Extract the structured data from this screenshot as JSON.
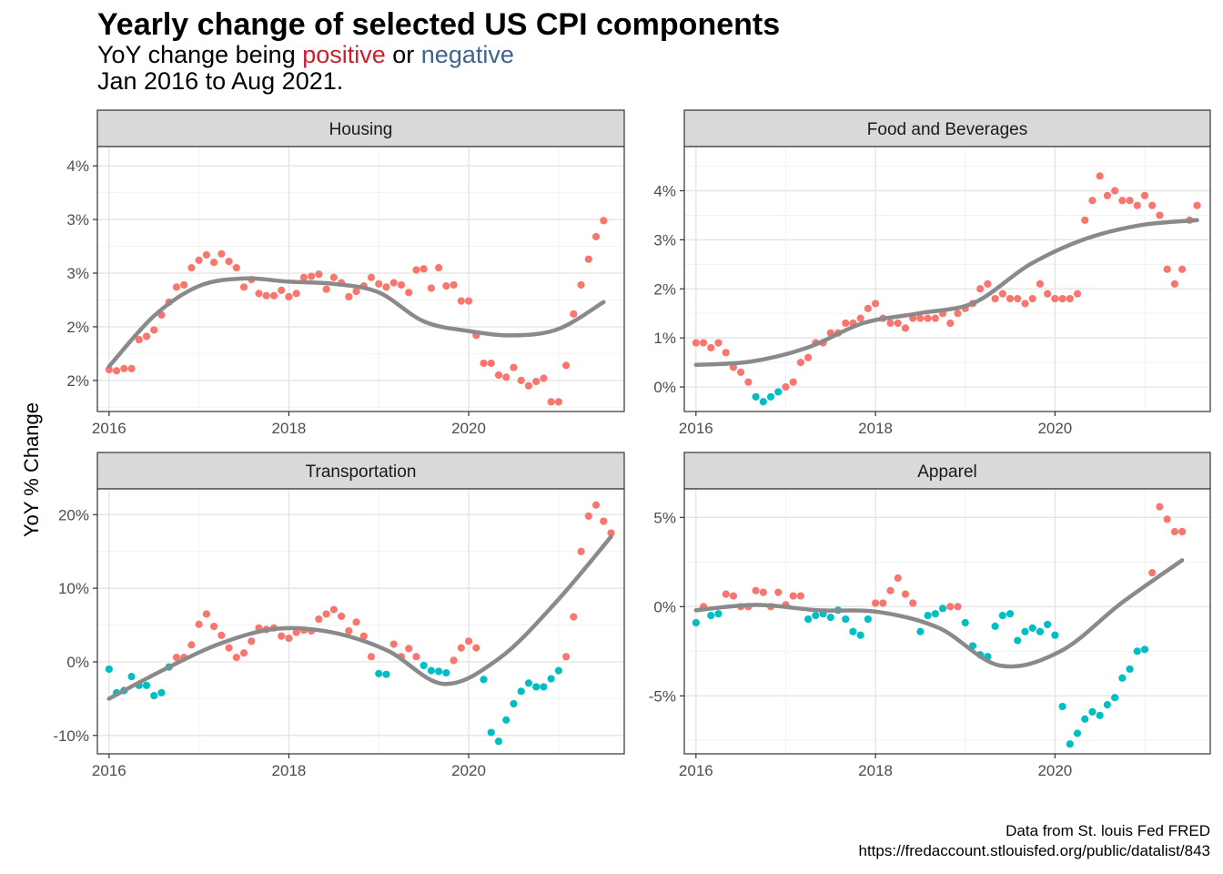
{
  "title": "Yearly change of selected US CPI components",
  "subtitle": {
    "prefix": "YoY change being ",
    "positive_word": "positive",
    "middle": " or  ",
    "negative_word": "negative",
    "line2": "Jan 2016 to Aug 2021."
  },
  "ylabel": "YoY % Change",
  "caption": {
    "line1": "Data from  St. louis Fed FRED",
    "line2": "https://fredaccount.stlouisfed.org/public/datalist/843"
  },
  "colors": {
    "positive": "#F8766D",
    "negative": "#00BFC4",
    "trend": "#8A8A8A",
    "strip": "#D9D9D9"
  },
  "chart_data": [
    {
      "type": "scatter",
      "facet": "Housing",
      "x_start": "2016-01",
      "x_step": "month",
      "x_ticks": [
        "2016",
        "2018",
        "2020"
      ],
      "y_ticks": [
        {
          "v": 1.5,
          "label": "2%"
        },
        {
          "v": 2.0,
          "label": "2%"
        },
        {
          "v": 2.5,
          "label": "3%"
        },
        {
          "v": 3.0,
          "label": "3%"
        },
        {
          "v": 3.5,
          "label": "4%"
        }
      ],
      "ylim": [
        1.21,
        3.68
      ],
      "values": [
        1.6,
        1.59,
        1.61,
        1.61,
        1.88,
        1.91,
        1.97,
        2.11,
        2.23,
        2.37,
        2.39,
        2.55,
        2.62,
        2.67,
        2.6,
        2.68,
        2.61,
        2.55,
        2.37,
        2.44,
        2.31,
        2.29,
        2.29,
        2.34,
        2.28,
        2.31,
        2.46,
        2.47,
        2.49,
        2.35,
        2.46,
        2.41,
        2.28,
        2.33,
        2.38,
        2.46,
        2.4,
        2.37,
        2.41,
        2.39,
        2.32,
        2.53,
        2.54,
        2.36,
        2.55,
        2.38,
        2.39,
        2.24,
        2.24,
        1.92,
        1.66,
        1.66,
        1.55,
        1.53,
        1.62,
        1.5,
        1.45,
        1.49,
        1.52,
        1.3,
        1.3,
        1.64,
        2.12,
        2.39,
        2.63,
        2.84,
        2.99
      ],
      "trend": [
        1.63,
        2.1,
        2.38,
        2.45,
        2.42,
        2.4,
        2.32,
        2.05,
        1.96,
        1.92,
        1.98,
        2.23
      ]
    },
    {
      "type": "scatter",
      "facet": "Food and Beverages",
      "x_start": "2016-01",
      "x_step": "month",
      "x_ticks": [
        "2016",
        "2018",
        "2020"
      ],
      "y_ticks": [
        {
          "v": 0,
          "label": "0%"
        },
        {
          "v": 1,
          "label": "1%"
        },
        {
          "v": 2,
          "label": "2%"
        },
        {
          "v": 3,
          "label": "3%"
        },
        {
          "v": 4,
          "label": "4%"
        }
      ],
      "ylim": [
        -0.5,
        4.9
      ],
      "values": [
        0.9,
        0.9,
        0.8,
        0.9,
        0.7,
        0.4,
        0.3,
        0.1,
        -0.2,
        -0.3,
        -0.2,
        -0.1,
        -0.0,
        0.1,
        0.5,
        0.6,
        0.9,
        0.9,
        1.1,
        1.1,
        1.3,
        1.3,
        1.4,
        1.6,
        1.7,
        1.4,
        1.3,
        1.3,
        1.2,
        1.4,
        1.4,
        1.4,
        1.4,
        1.5,
        1.3,
        1.5,
        1.6,
        1.7,
        2.0,
        2.1,
        1.8,
        1.9,
        1.8,
        1.8,
        1.7,
        1.8,
        2.1,
        1.9,
        1.8,
        1.8,
        1.8,
        1.9,
        3.4,
        3.8,
        4.3,
        3.9,
        4.0,
        3.8,
        3.8,
        3.7,
        3.9,
        3.7,
        3.5,
        2.4,
        2.1,
        2.4,
        3.4,
        3.7
      ],
      "trend": [
        0.45,
        0.52,
        0.8,
        1.3,
        1.5,
        1.72,
        2.5,
        3.02,
        3.3,
        3.4
      ]
    },
    {
      "type": "scatter",
      "facet": "Transportation",
      "x_start": "2016-01",
      "x_step": "month",
      "x_ticks": [
        "2016",
        "2018",
        "2020"
      ],
      "y_ticks": [
        {
          "v": -10,
          "label": "-10%"
        },
        {
          "v": 0,
          "label": "0%"
        },
        {
          "v": 10,
          "label": "10%"
        },
        {
          "v": 20,
          "label": "20%"
        }
      ],
      "ylim": [
        -12.5,
        23.5
      ],
      "values": [
        -1.0,
        -4.2,
        -3.9,
        -2.0,
        -3.2,
        -3.2,
        -4.6,
        -4.2,
        -0.7,
        0.6,
        0.6,
        2.3,
        5.1,
        6.5,
        4.8,
        3.6,
        1.9,
        0.6,
        1.2,
        2.8,
        4.6,
        4.4,
        4.6,
        3.5,
        3.2,
        4.0,
        4.3,
        4.2,
        5.8,
        6.5,
        7.1,
        6.2,
        4.2,
        5.4,
        3.5,
        0.7,
        -1.6,
        -1.7,
        2.4,
        0.7,
        1.8,
        0.7,
        -0.5,
        -1.2,
        -1.3,
        -1.5,
        0.2,
        1.9,
        2.8,
        1.9,
        -2.4,
        -9.6,
        -10.8,
        -7.9,
        -5.7,
        -4.0,
        -2.9,
        -3.4,
        -3.4,
        -2.3,
        -1.2,
        0.7,
        6.1,
        15.0,
        19.8,
        21.3,
        19.1,
        17.5
      ],
      "trend": [
        -5.0,
        -1.0,
        2.5,
        4.5,
        4.0,
        1.5,
        -3.0,
        0.5,
        8.0,
        17.0
      ]
    },
    {
      "type": "scatter",
      "facet": "Apparel",
      "x_start": "2016-01",
      "x_step": "month",
      "x_ticks": [
        "2016",
        "2018",
        "2020"
      ],
      "y_ticks": [
        {
          "v": -5,
          "label": "-5%"
        },
        {
          "v": 0,
          "label": "0%"
        },
        {
          "v": 5,
          "label": "5%"
        }
      ],
      "ylim": [
        -8.25,
        6.6
      ],
      "values": [
        -0.9,
        0.0,
        -0.5,
        -0.4,
        0.7,
        0.6,
        0.0,
        0.0,
        0.9,
        0.8,
        0.0,
        0.8,
        0.1,
        0.6,
        0.6,
        -0.7,
        -0.5,
        -0.4,
        -0.6,
        -0.2,
        -0.7,
        -1.4,
        -1.6,
        -0.7,
        0.2,
        0.2,
        0.9,
        1.6,
        0.7,
        0.2,
        -1.4,
        -0.5,
        -0.4,
        -0.1,
        0.0,
        0.0,
        -0.9,
        -2.2,
        -2.7,
        -2.8,
        -1.1,
        -0.5,
        -0.4,
        -1.9,
        -1.4,
        -1.2,
        -1.4,
        -1.0,
        -1.6,
        -5.6,
        -7.7,
        -7.1,
        -6.3,
        -5.9,
        -6.1,
        -5.5,
        -5.1,
        -4.0,
        -3.5,
        -2.5,
        -2.4,
        1.9,
        5.6,
        4.9,
        4.2,
        4.2
      ],
      "trend": [
        -0.2,
        0.1,
        -0.2,
        -0.3,
        -1.2,
        -3.3,
        -2.5,
        0.2,
        2.6
      ]
    }
  ]
}
